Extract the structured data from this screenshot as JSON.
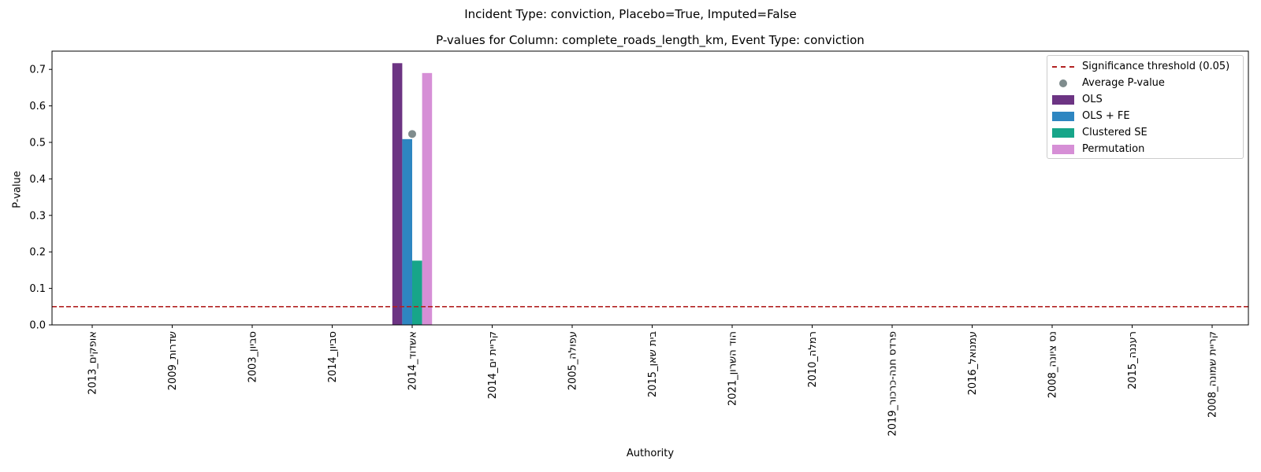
{
  "chart_data": {
    "type": "bar",
    "suptitle": "Incident Type: conviction, Placebo=True, Imputed=False",
    "title": "P-values for Column: complete_roads_length_km, Event Type: conviction",
    "xlabel": "Authority",
    "ylabel": "P-value",
    "ylim": [
      0,
      0.75
    ],
    "yticks": [
      "0.0",
      "0.1",
      "0.2",
      "0.3",
      "0.4",
      "0.5",
      "0.6",
      "0.7"
    ],
    "grid": false,
    "legend_position": "top-right",
    "categories": [
      "אופקים_2013",
      "שדרות_2009",
      "סביון_2003",
      "סביון_2014",
      "אשדוד_2014",
      "קריית ים_2014",
      "עפולה_2005",
      "בית שאן_2015",
      "הוד השרון_2021",
      "רמלה_2010",
      "פרדס חנה-כרכור_2019",
      "עמנואל_2016",
      "נס ציונה_2008",
      "רעננה_2015",
      "קריית שמונה_2008"
    ],
    "series": [
      {
        "name": "OLS",
        "color": "#6c3483",
        "values": [
          null,
          null,
          null,
          null,
          0.717,
          null,
          null,
          null,
          null,
          null,
          null,
          null,
          null,
          null,
          null
        ]
      },
      {
        "name": "OLS + FE",
        "color": "#2e86c1",
        "values": [
          null,
          null,
          null,
          null,
          0.509,
          null,
          null,
          null,
          null,
          null,
          null,
          null,
          null,
          null,
          null
        ]
      },
      {
        "name": "Clustered SE",
        "color": "#17a589",
        "values": [
          null,
          null,
          null,
          null,
          0.176,
          null,
          null,
          null,
          null,
          null,
          null,
          null,
          null,
          null,
          null
        ]
      },
      {
        "name": "Permutation",
        "color": "#d68fd6",
        "values": [
          null,
          null,
          null,
          null,
          0.69,
          null,
          null,
          null,
          null,
          null,
          null,
          null,
          null,
          null,
          null
        ]
      }
    ],
    "average": {
      "name": "Average P-value",
      "color": "#7f8c8d",
      "values": [
        null,
        null,
        null,
        null,
        0.523,
        null,
        null,
        null,
        null,
        null,
        null,
        null,
        null,
        null,
        null
      ]
    },
    "threshold": {
      "name": "Significance threshold (0.05)",
      "value": 0.05,
      "color": "#b22222"
    }
  }
}
